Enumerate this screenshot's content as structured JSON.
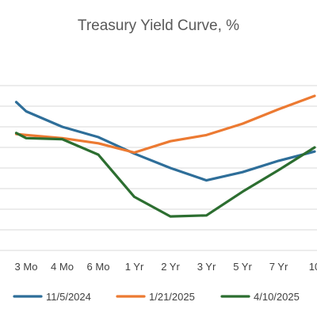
{
  "chart_data": {
    "type": "line",
    "title": "Treasury Yield Curve, %",
    "categories": [
      "3 Mo",
      "4 Mo",
      "6 Mo",
      "1 Yr",
      "2 Yr",
      "3 Yr",
      "5 Yr",
      "7 Yr",
      "10"
    ],
    "visible_first_partial_category": true,
    "series": [
      {
        "name": "11/5/2024",
        "color": "#2e6e99",
        "values": [
          4.55,
          4.4,
          4.3,
          4.14,
          4.0,
          3.88,
          3.96,
          4.07,
          4.16
        ]
      },
      {
        "name": "1/21/2025",
        "color": "#ec7a32",
        "values": [
          4.32,
          4.29,
          4.24,
          4.15,
          4.26,
          4.32,
          4.43,
          4.57,
          4.7
        ]
      },
      {
        "name": "4/10/2025",
        "color": "#2c6e30",
        "values": [
          4.29,
          4.28,
          4.13,
          3.72,
          3.53,
          3.54,
          3.77,
          3.98,
          4.2
        ]
      }
    ],
    "extra_first_point": {
      "11/5/2024": 4.64,
      "1/21/2025": 4.33,
      "4/10/2025": 4.34
    },
    "ylim": [
      3.2,
      4.9
    ],
    "y_gridlines": [
      3.2,
      3.4,
      3.6,
      3.8,
      4.0,
      4.2,
      4.4,
      4.6,
      4.8
    ],
    "grid": true,
    "legend_position": "bottom"
  }
}
